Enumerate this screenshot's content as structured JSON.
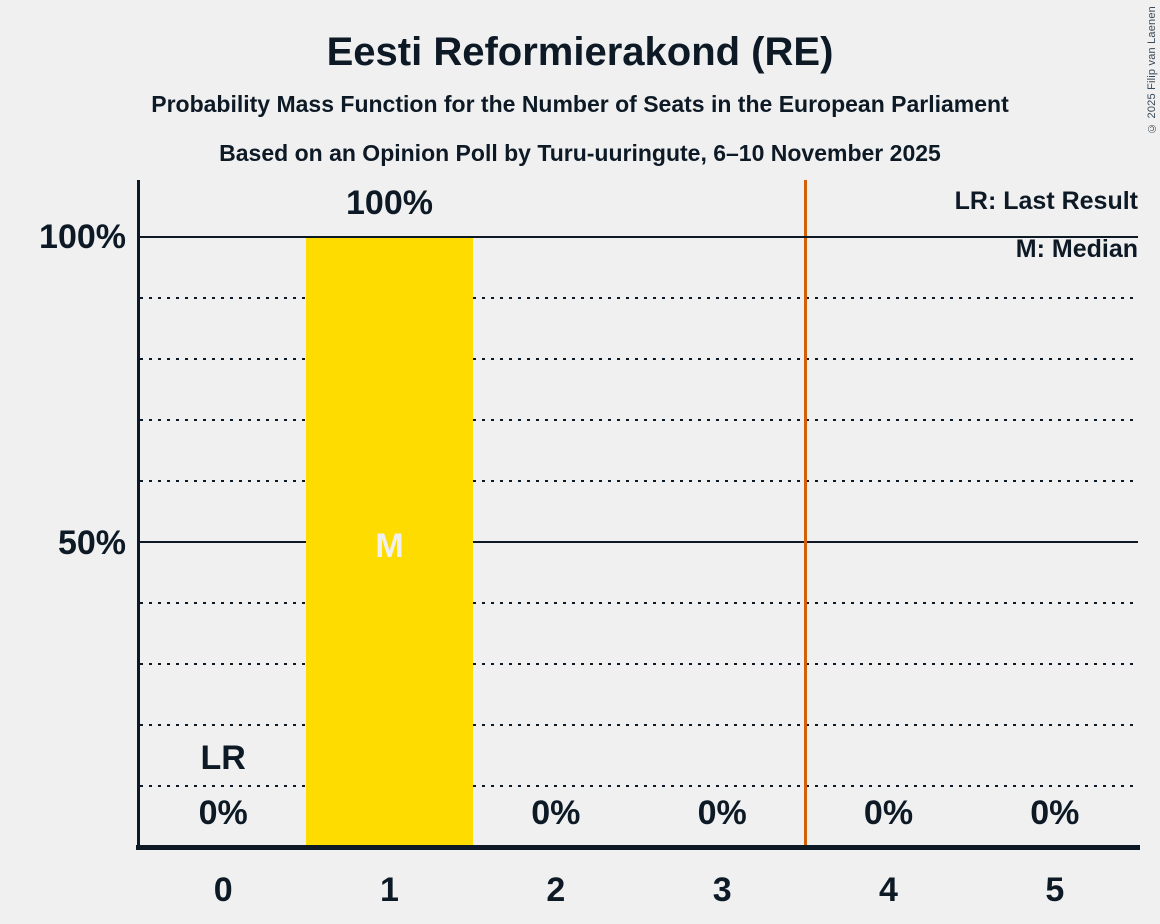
{
  "title": "Eesti Reformierakond (RE)",
  "subtitle1": "Probability Mass Function for the Number of Seats in the European Parliament",
  "subtitle2": "Based on an Opinion Poll by Turu-uuringute, 6–10 November 2025",
  "copyright": "© 2025 Filip van Laenen",
  "legend": {
    "lr": "LR: Last Result",
    "m": "M: Median"
  },
  "y_axis": {
    "tick_labels": [
      "100%",
      "50%"
    ]
  },
  "annotations": {
    "lr_label": "LR",
    "median_label": "M"
  },
  "chart_data": {
    "type": "bar",
    "title": "Eesti Reformierakond (RE)",
    "categories": [
      "0",
      "1",
      "2",
      "3",
      "4",
      "5"
    ],
    "values": [
      0,
      100,
      0,
      0,
      0,
      0
    ],
    "value_labels": [
      "0%",
      "100%",
      "0%",
      "0%",
      "0%",
      "0%"
    ],
    "ylim": [
      0,
      109
    ],
    "ytick_percents": [
      100,
      50
    ],
    "gridlines": [
      {
        "pct": 10,
        "style": "dotted"
      },
      {
        "pct": 20,
        "style": "dotted"
      },
      {
        "pct": 30,
        "style": "dotted"
      },
      {
        "pct": 40,
        "style": "dotted"
      },
      {
        "pct": 50,
        "style": "solid"
      },
      {
        "pct": 60,
        "style": "dotted"
      },
      {
        "pct": 70,
        "style": "dotted"
      },
      {
        "pct": 80,
        "style": "dotted"
      },
      {
        "pct": 90,
        "style": "dotted"
      },
      {
        "pct": 100,
        "style": "solid"
      }
    ],
    "median_seat": 1,
    "last_result_seat": 0,
    "majority_line_x": 3.5,
    "legend_position": "top-right",
    "grid": true,
    "colors": {
      "bar": "#ffdc00",
      "majority_line": "#d2600a",
      "ink": "#0d1a26",
      "background": "#f0f0f0",
      "median_label_text": "#f0f0f2"
    }
  }
}
